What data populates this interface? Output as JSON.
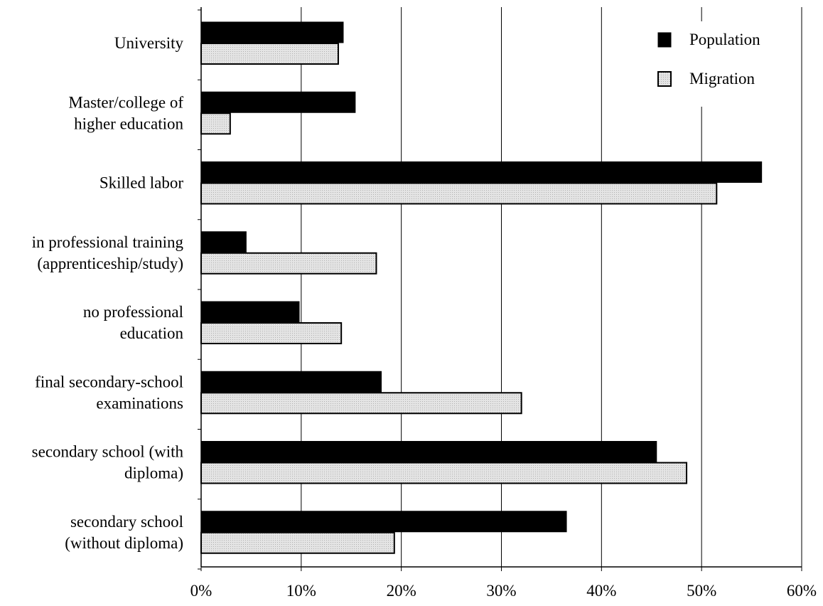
{
  "chart_data": {
    "type": "bar",
    "orientation": "horizontal",
    "categories": [
      [
        "University"
      ],
      [
        "Master/college of",
        "higher education"
      ],
      [
        "Skilled labor"
      ],
      [
        "in professional training",
        "(apprenticeship/study)"
      ],
      [
        "no professional",
        "education"
      ],
      [
        "final secondary-school",
        "examinations"
      ],
      [
        "secondary school (with",
        "diploma)"
      ],
      [
        "secondary school",
        "(without diploma)"
      ]
    ],
    "series": [
      {
        "name": "Population",
        "color": "#000000",
        "values": [
          14.2,
          15.4,
          56.0,
          4.5,
          9.8,
          18.0,
          45.5,
          36.5
        ]
      },
      {
        "name": "Migration",
        "color": "#d9d9d9",
        "values": [
          13.7,
          2.9,
          51.5,
          17.5,
          14.0,
          32.0,
          48.5,
          19.3
        ]
      }
    ],
    "xlim": [
      0,
      60
    ],
    "xticks": [
      "0%",
      "10%",
      "20%",
      "30%",
      "40%",
      "50%",
      "60%"
    ],
    "grid": "vertical",
    "legend_position": "top-right"
  }
}
